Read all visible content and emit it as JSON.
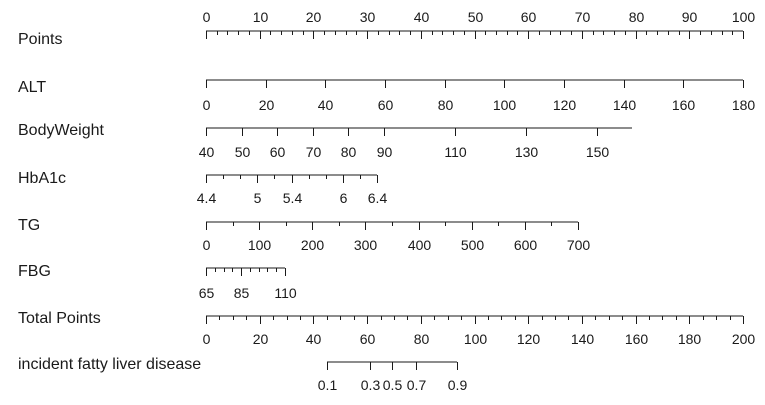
{
  "chart_data": {
    "type": "nomogram",
    "grid": false,
    "rows": [
      {
        "key": "points",
        "label": "Points",
        "range": [
          0,
          100
        ],
        "label_values": [
          0,
          10,
          20,
          30,
          40,
          50,
          60,
          70,
          80,
          90,
          100
        ],
        "tick_labels": [
          "0",
          "10",
          "20",
          "30",
          "40",
          "50",
          "60",
          "70",
          "80",
          "90",
          "100"
        ],
        "minor_step": 2,
        "labels_position": "above"
      },
      {
        "key": "alt",
        "label": "ALT",
        "range": [
          0,
          180
        ],
        "label_values": [
          0,
          20,
          40,
          60,
          80,
          100,
          120,
          140,
          160,
          180
        ],
        "tick_labels": [
          "0",
          "20",
          "40",
          "60",
          "80",
          "100",
          "120",
          "140",
          "160",
          "180"
        ],
        "minor_step": 0,
        "labels_position": "below"
      },
      {
        "key": "bodyweight",
        "label": "BodyWeight",
        "range": [
          40,
          160
        ],
        "label_values": [
          40,
          50,
          60,
          70,
          80,
          90,
          110,
          130,
          150
        ],
        "tick_labels": [
          "40",
          "50",
          "60",
          "70",
          "80",
          "90",
          "110",
          "130",
          "150"
        ],
        "minor_step": 0,
        "labels_position": "below"
      },
      {
        "key": "hba1c",
        "label": "HbA1c",
        "range": [
          4.4,
          6.4
        ],
        "label_values": [
          4.4,
          5,
          5.4,
          6,
          6.4
        ],
        "tick_labels": [
          "4.4",
          "5",
          "5.4",
          "6",
          "6.4"
        ],
        "minor_step": 0.2,
        "labels_position": "below"
      },
      {
        "key": "tg",
        "label": "TG",
        "range": [
          0,
          700
        ],
        "label_values": [
          0,
          100,
          200,
          300,
          400,
          500,
          600,
          700
        ],
        "tick_labels": [
          "0",
          "100",
          "200",
          "300",
          "400",
          "500",
          "600",
          "700"
        ],
        "minor_step": 50,
        "labels_position": "below"
      },
      {
        "key": "fbg",
        "label": "FBG",
        "range": [
          65,
          110
        ],
        "label_values": [
          65,
          85,
          110
        ],
        "tick_labels": [
          "65",
          "85",
          "110"
        ],
        "minor_step": 5,
        "labels_position": "below"
      },
      {
        "key": "total",
        "label": "Total Points",
        "range": [
          0,
          200
        ],
        "label_values": [
          0,
          20,
          40,
          60,
          80,
          100,
          120,
          140,
          160,
          180,
          200
        ],
        "tick_labels": [
          "0",
          "20",
          "40",
          "60",
          "80",
          "100",
          "120",
          "140",
          "160",
          "180",
          "200"
        ],
        "minor_step": 5,
        "labels_position": "below"
      },
      {
        "key": "risk",
        "label": "incident fatty liver disease",
        "range": [
          0.1,
          0.9
        ],
        "label_values": [
          0.1,
          0.3,
          0.5,
          0.7,
          0.9
        ],
        "tick_labels": [
          "0.1",
          "0.3",
          "0.5",
          "0.7",
          "0.9"
        ],
        "minor_step": 0,
        "labels_position": "below"
      }
    ]
  }
}
